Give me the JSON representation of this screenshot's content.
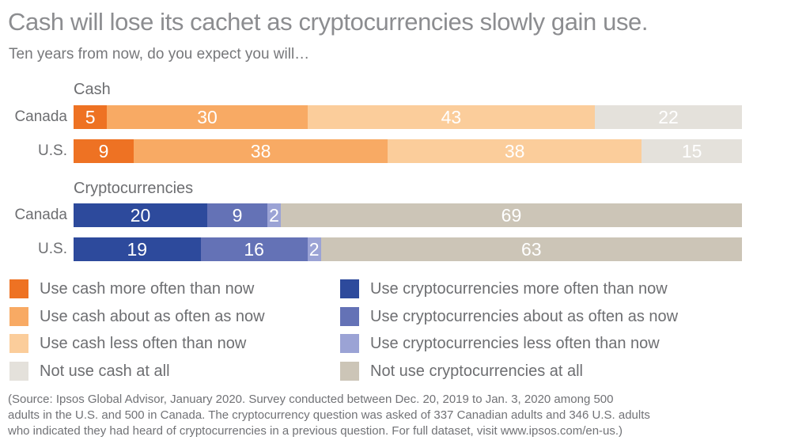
{
  "title": "Cash will lose its cachet as cryptocurrencies slowly gain use.",
  "subtitle": "Ten years from now, do you expect you will…",
  "colors": {
    "cash": [
      "#ee7223",
      "#f8aa64",
      "#fbcd9b",
      "#e4e1db"
    ],
    "crypto": [
      "#2d4a9c",
      "#6472b6",
      "#9ba3d5",
      "#ccc5b7"
    ]
  },
  "chart_data": {
    "type": "bar",
    "stacked": true,
    "orientation": "horizontal",
    "unit": "percent",
    "xlim": [
      0,
      100
    ],
    "title": "Cash will lose its cachet as cryptocurrencies slowly gain use.",
    "subtitle": "Ten years from now, do you expect you will…",
    "groups": [
      {
        "heading": "Cash",
        "palette": "cash",
        "rows": [
          {
            "label": "Canada",
            "values": [
              5,
              30,
              43,
              22
            ]
          },
          {
            "label": "U.S.",
            "values": [
              9,
              38,
              38,
              15
            ]
          }
        ],
        "legend": [
          "Use cash more often than now",
          "Use cash about as often as now",
          "Use cash less often than now",
          "Not use cash at all"
        ]
      },
      {
        "heading": "Cryptocurrencies",
        "palette": "crypto",
        "rows": [
          {
            "label": "Canada",
            "values": [
              20,
              9,
              2,
              69
            ]
          },
          {
            "label": "U.S.",
            "values": [
              19,
              16,
              2,
              63
            ]
          }
        ],
        "legend": [
          "Use cryptocurrencies more often than now",
          "Use cryptocurrencies about as often as now",
          "Use cryptocurrencies less often than now",
          "Not use cryptocurrencies at all"
        ]
      }
    ]
  },
  "source": {
    "lines": [
      "(Source: Ipsos Global Advisor, January 2020. Survey conducted between Dec. 20, 2019 to Jan. 3, 2020 among 500",
      "adults in the U.S. and 500 in Canada. The cryptocurrency question was asked of 337 Canadian adults and 346 U.S. adults",
      "who indicated they had heard of cryptocurrencies in a previous question. For full dataset, visit www.ipsos.com/en-us.)"
    ]
  }
}
